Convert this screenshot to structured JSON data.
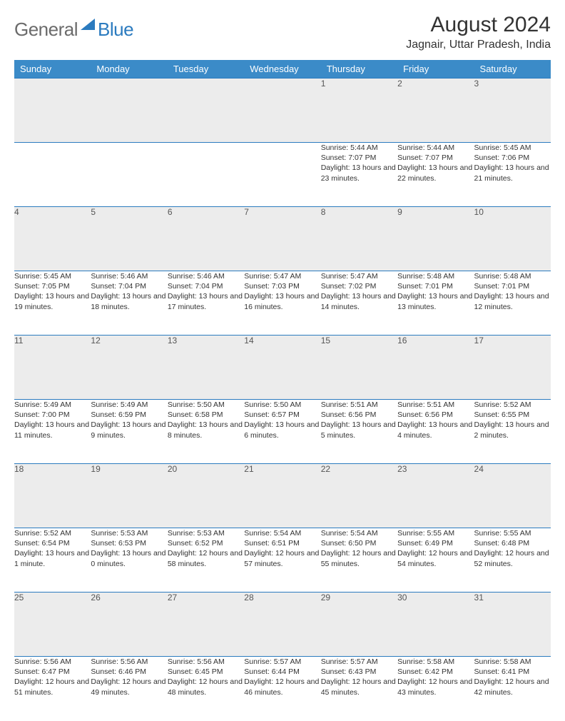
{
  "logo": {
    "general": "General",
    "blue": "Blue"
  },
  "title": "August 2024",
  "location": "Jagnair, Uttar Pradesh, India",
  "colors": {
    "header_bg": "#3b8bc8",
    "header_text": "#ffffff",
    "border": "#2b7bbf",
    "daynum_bg": "#ececec",
    "logo_gray": "#6b6b6b",
    "logo_blue": "#2b7bbf"
  },
  "day_headers": [
    "Sunday",
    "Monday",
    "Tuesday",
    "Wednesday",
    "Thursday",
    "Friday",
    "Saturday"
  ],
  "weeks": [
    [
      null,
      null,
      null,
      null,
      {
        "n": "1",
        "sr": "5:44 AM",
        "ss": "7:07 PM",
        "dl": "13 hours and 23 minutes."
      },
      {
        "n": "2",
        "sr": "5:44 AM",
        "ss": "7:07 PM",
        "dl": "13 hours and 22 minutes."
      },
      {
        "n": "3",
        "sr": "5:45 AM",
        "ss": "7:06 PM",
        "dl": "13 hours and 21 minutes."
      }
    ],
    [
      {
        "n": "4",
        "sr": "5:45 AM",
        "ss": "7:05 PM",
        "dl": "13 hours and 19 minutes."
      },
      {
        "n": "5",
        "sr": "5:46 AM",
        "ss": "7:04 PM",
        "dl": "13 hours and 18 minutes."
      },
      {
        "n": "6",
        "sr": "5:46 AM",
        "ss": "7:04 PM",
        "dl": "13 hours and 17 minutes."
      },
      {
        "n": "7",
        "sr": "5:47 AM",
        "ss": "7:03 PM",
        "dl": "13 hours and 16 minutes."
      },
      {
        "n": "8",
        "sr": "5:47 AM",
        "ss": "7:02 PM",
        "dl": "13 hours and 14 minutes."
      },
      {
        "n": "9",
        "sr": "5:48 AM",
        "ss": "7:01 PM",
        "dl": "13 hours and 13 minutes."
      },
      {
        "n": "10",
        "sr": "5:48 AM",
        "ss": "7:01 PM",
        "dl": "13 hours and 12 minutes."
      }
    ],
    [
      {
        "n": "11",
        "sr": "5:49 AM",
        "ss": "7:00 PM",
        "dl": "13 hours and 11 minutes."
      },
      {
        "n": "12",
        "sr": "5:49 AM",
        "ss": "6:59 PM",
        "dl": "13 hours and 9 minutes."
      },
      {
        "n": "13",
        "sr": "5:50 AM",
        "ss": "6:58 PM",
        "dl": "13 hours and 8 minutes."
      },
      {
        "n": "14",
        "sr": "5:50 AM",
        "ss": "6:57 PM",
        "dl": "13 hours and 6 minutes."
      },
      {
        "n": "15",
        "sr": "5:51 AM",
        "ss": "6:56 PM",
        "dl": "13 hours and 5 minutes."
      },
      {
        "n": "16",
        "sr": "5:51 AM",
        "ss": "6:56 PM",
        "dl": "13 hours and 4 minutes."
      },
      {
        "n": "17",
        "sr": "5:52 AM",
        "ss": "6:55 PM",
        "dl": "13 hours and 2 minutes."
      }
    ],
    [
      {
        "n": "18",
        "sr": "5:52 AM",
        "ss": "6:54 PM",
        "dl": "13 hours and 1 minute."
      },
      {
        "n": "19",
        "sr": "5:53 AM",
        "ss": "6:53 PM",
        "dl": "13 hours and 0 minutes."
      },
      {
        "n": "20",
        "sr": "5:53 AM",
        "ss": "6:52 PM",
        "dl": "12 hours and 58 minutes."
      },
      {
        "n": "21",
        "sr": "5:54 AM",
        "ss": "6:51 PM",
        "dl": "12 hours and 57 minutes."
      },
      {
        "n": "22",
        "sr": "5:54 AM",
        "ss": "6:50 PM",
        "dl": "12 hours and 55 minutes."
      },
      {
        "n": "23",
        "sr": "5:55 AM",
        "ss": "6:49 PM",
        "dl": "12 hours and 54 minutes."
      },
      {
        "n": "24",
        "sr": "5:55 AM",
        "ss": "6:48 PM",
        "dl": "12 hours and 52 minutes."
      }
    ],
    [
      {
        "n": "25",
        "sr": "5:56 AM",
        "ss": "6:47 PM",
        "dl": "12 hours and 51 minutes."
      },
      {
        "n": "26",
        "sr": "5:56 AM",
        "ss": "6:46 PM",
        "dl": "12 hours and 49 minutes."
      },
      {
        "n": "27",
        "sr": "5:56 AM",
        "ss": "6:45 PM",
        "dl": "12 hours and 48 minutes."
      },
      {
        "n": "28",
        "sr": "5:57 AM",
        "ss": "6:44 PM",
        "dl": "12 hours and 46 minutes."
      },
      {
        "n": "29",
        "sr": "5:57 AM",
        "ss": "6:43 PM",
        "dl": "12 hours and 45 minutes."
      },
      {
        "n": "30",
        "sr": "5:58 AM",
        "ss": "6:42 PM",
        "dl": "12 hours and 43 minutes."
      },
      {
        "n": "31",
        "sr": "5:58 AM",
        "ss": "6:41 PM",
        "dl": "12 hours and 42 minutes."
      }
    ]
  ],
  "labels": {
    "sunrise": "Sunrise: ",
    "sunset": "Sunset: ",
    "daylight": "Daylight: "
  }
}
